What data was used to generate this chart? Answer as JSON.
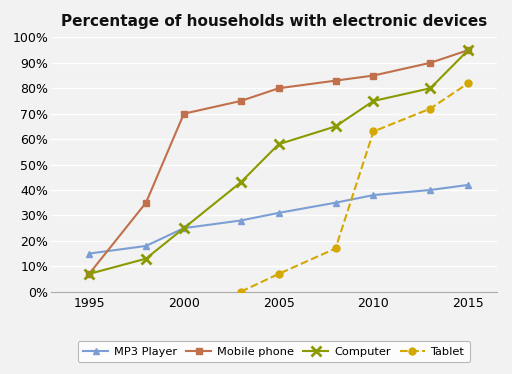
{
  "title": "Percentage of households with electronic devices",
  "years": [
    1995,
    1998,
    2000,
    2003,
    2005,
    2008,
    2010,
    2013,
    2015
  ],
  "mp3": [
    15,
    18,
    25,
    28,
    31,
    35,
    38,
    40,
    42
  ],
  "mobile": [
    7,
    35,
    70,
    75,
    80,
    83,
    85,
    90,
    95
  ],
  "computer": [
    7,
    13,
    25,
    43,
    58,
    65,
    75,
    80,
    95
  ],
  "tablet": [
    null,
    null,
    null,
    0,
    7,
    17,
    63,
    72,
    82
  ],
  "ylim": [
    0,
    100
  ],
  "yticks": [
    0,
    10,
    20,
    30,
    40,
    50,
    60,
    70,
    80,
    90,
    100
  ],
  "xticks": [
    1995,
    2000,
    2005,
    2010,
    2015
  ],
  "mp3_color": "#7b9fd4",
  "mobile_color": "#c0704a",
  "computer_color": "#8a9a00",
  "tablet_color": "#d4a800",
  "legend_labels": [
    "MP3 Player",
    "Mobile phone",
    "Computer",
    "Tablet"
  ],
  "background_color": "#f2f2f2",
  "plot_bg_color": "#f2f2f2",
  "grid_color": "#ffffff",
  "title_fontsize": 11,
  "tick_fontsize": 9
}
